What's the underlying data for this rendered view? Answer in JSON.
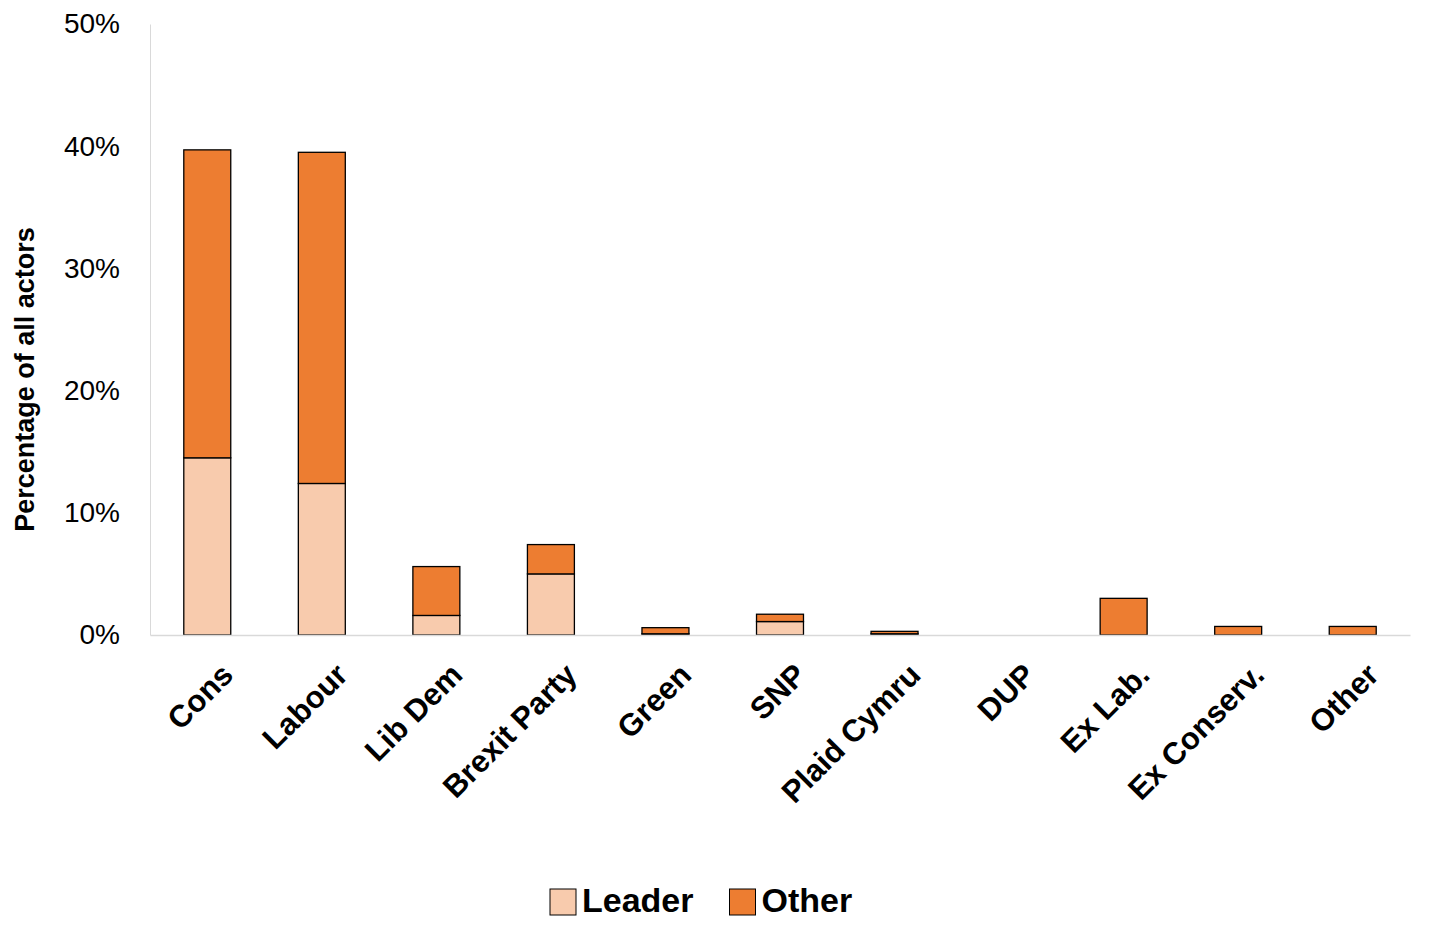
{
  "chart_data": {
    "type": "bar",
    "stacked": true,
    "legend": "bottom",
    "grid": false,
    "y_label": "Percentage of all actors",
    "categories": [
      "Cons",
      "Labour",
      "Lib Dem",
      "Brexit Party",
      "Green",
      "SNP",
      "Plaid Cymru",
      "DUP",
      "Ex Lab.",
      "Ex Conserv.",
      "Other"
    ],
    "series": [
      {
        "name": "Leader",
        "color": "#f8cbad",
        "values": [
          14.5,
          12.4,
          1.6,
          5.0,
          0.1,
          1.1,
          0.1,
          0,
          0,
          0,
          0
        ]
      },
      {
        "name": "Other",
        "color": "#ed7d31",
        "values": [
          25.2,
          27.1,
          4.0,
          2.4,
          0.5,
          0.6,
          0.2,
          0,
          3.0,
          0.7,
          0.7
        ]
      }
    ],
    "ylim": [
      0,
      50
    ],
    "yticks": [
      {
        "value": 0,
        "label": "0%"
      },
      {
        "value": 10,
        "label": "10%"
      },
      {
        "value": 20,
        "label": "20%"
      },
      {
        "value": 30,
        "label": "30%"
      },
      {
        "value": 40,
        "label": "40%"
      },
      {
        "value": 50,
        "label": "50%"
      }
    ]
  }
}
